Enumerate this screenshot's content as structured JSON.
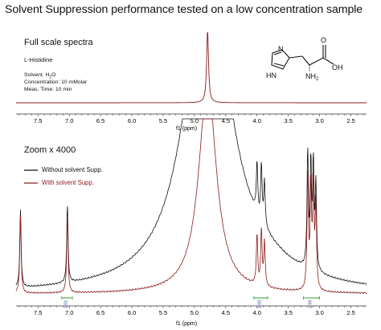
{
  "title": "Solvent Suppression performance tested on a low concentration sample",
  "top_panel": {
    "label": "Full scale spectra",
    "compound_name": "L-Histidine",
    "solvent_label": "Solvent: H",
    "solvent_sub": "2",
    "solvent_end": "O",
    "concentration": "Concentration: 10 mMolar",
    "meas_time": "Meas. Time: 10 min"
  },
  "molecule_labels": {
    "nh": "HN",
    "n": "N",
    "nh2": "NH",
    "nh2_sub": "2",
    "o": "O",
    "oh": "OH"
  },
  "bottom_panel": {
    "label": "Zoom x 4000",
    "legend": [
      {
        "label": "Without solvent Supp.",
        "color": "#111111"
      },
      {
        "label": "With solvent Supp.",
        "color": "#8b1a1a"
      }
    ]
  },
  "colors": {
    "without": "#111111",
    "with": "#8b1a1a",
    "integral": "#2f9e2f",
    "integral_label": "#3050b0",
    "axis": "#333333"
  },
  "chart_data": [
    {
      "type": "line",
      "name": "full-scale",
      "xlabel": "f1 (ppm)",
      "xlim": [
        7.85,
        2.25
      ],
      "x_reversed": true,
      "xticks": [
        "7.5",
        "7.0",
        "6.5",
        "6.0",
        "5.5",
        "5.0",
        "4.5",
        "4.0",
        "3.5",
        "3.0",
        "2.5"
      ],
      "peaks": [
        {
          "x": 4.79,
          "relative_height": 1.0
        }
      ]
    },
    {
      "type": "line",
      "name": "zoom-x4000",
      "xlabel": "f1 (ppm)",
      "xlim": [
        7.85,
        2.25
      ],
      "x_reversed": true,
      "xticks": [
        "7.5",
        "7.0",
        "6.5",
        "6.0",
        "5.5",
        "5.0",
        "4.5",
        "4.0",
        "3.5",
        "3.0",
        "2.5"
      ],
      "series": [
        {
          "name": "Without solvent Supp.",
          "peaks": [
            {
              "x": 7.78,
              "h": 0.42
            },
            {
              "x": 7.03,
              "h": 0.42
            },
            {
              "x": 4.0,
              "h": 0.27
            },
            {
              "x": 3.93,
              "h": 0.3
            },
            {
              "x": 3.88,
              "h": 0.24
            },
            {
              "x": 3.19,
              "h": 0.62
            },
            {
              "x": 3.14,
              "h": 0.55
            },
            {
              "x": 3.1,
              "h": 0.55
            },
            {
              "x": 3.06,
              "h": 0.46
            }
          ]
        },
        {
          "name": "With solvent Supp.",
          "peaks": [
            {
              "x": 7.78,
              "h": 0.42
            },
            {
              "x": 7.03,
              "h": 0.42
            },
            {
              "x": 4.0,
              "h": 0.27
            },
            {
              "x": 3.93,
              "h": 0.3
            },
            {
              "x": 3.88,
              "h": 0.24
            },
            {
              "x": 3.19,
              "h": 0.62
            },
            {
              "x": 3.14,
              "h": 0.55
            },
            {
              "x": 3.1,
              "h": 0.55
            },
            {
              "x": 3.06,
              "h": 0.46
            }
          ]
        }
      ],
      "integrals": [
        {
          "x_from": 7.12,
          "x_to": 6.95,
          "label": "1.01"
        },
        {
          "x_from": 4.05,
          "x_to": 3.83,
          "label": "1.00"
        },
        {
          "x_from": 3.26,
          "x_to": 3.0,
          "label": "1.99"
        }
      ]
    }
  ]
}
